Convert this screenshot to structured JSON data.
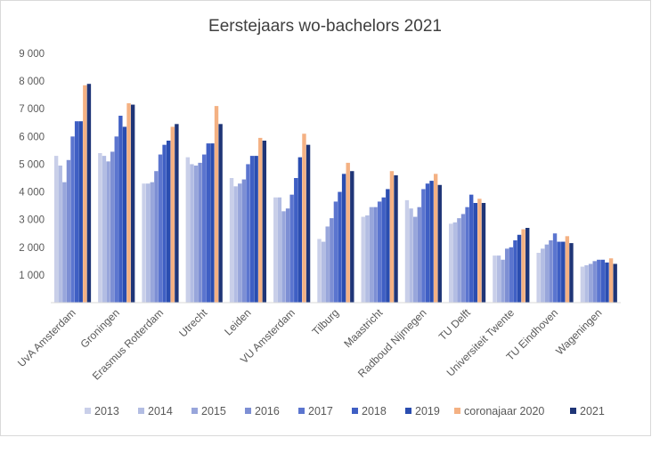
{
  "chart_data": {
    "type": "bar",
    "title": "Eerstejaars wo-bachelors 2021",
    "xlabel": "",
    "ylabel": "",
    "ylim": [
      0,
      9000
    ],
    "yticks": [
      "1 000",
      "2 000",
      "3 000",
      "4 000",
      "5 000",
      "6 000",
      "7 000",
      "8 000",
      "9 000"
    ],
    "grid": false,
    "legend": "bottom",
    "categories": [
      "UvA Amsterdam",
      "Groningen",
      "Erasmus Rotterdam",
      "Utrecht",
      "Leiden",
      "VU Amsterdam",
      "Tilburg",
      "Maastricht",
      "Radboud Nijmegen",
      "TU Delft",
      "Universiteit Twente",
      "TU Eindhoven",
      "Wageningen"
    ],
    "series": [
      {
        "name": "2013",
        "color": "#c9cfe9",
        "values": [
          5300,
          5400,
          4300,
          5250,
          4500,
          3800,
          2300,
          3100,
          3700,
          2850,
          1700,
          1800,
          1300
        ]
      },
      {
        "name": "2014",
        "color": "#b3bde3",
        "values": [
          4950,
          5300,
          4300,
          5000,
          4200,
          3800,
          2200,
          3150,
          3400,
          2900,
          1700,
          1950,
          1350
        ]
      },
      {
        "name": "2015",
        "color": "#98a6db",
        "values": [
          4350,
          5100,
          4350,
          4950,
          4300,
          3300,
          2750,
          3450,
          3100,
          3050,
          1550,
          2100,
          1400
        ]
      },
      {
        "name": "2016",
        "color": "#7d8fd4",
        "values": [
          5150,
          5450,
          4750,
          5050,
          4450,
          3400,
          3050,
          3450,
          3450,
          3200,
          1950,
          2250,
          1500
        ]
      },
      {
        "name": "2017",
        "color": "#5b75cf",
        "values": [
          6000,
          6000,
          5350,
          5350,
          5000,
          3900,
          3650,
          3650,
          4100,
          3450,
          2000,
          2500,
          1550
        ]
      },
      {
        "name": "2018",
        "color": "#3f5fc4",
        "values": [
          6550,
          6750,
          5700,
          5750,
          5300,
          4500,
          4000,
          3800,
          4300,
          3900,
          2250,
          2200,
          1550
        ]
      },
      {
        "name": "2019",
        "color": "#2a4db0",
        "values": [
          6550,
          6350,
          5850,
          5750,
          5300,
          5250,
          4650,
          4100,
          4400,
          3600,
          2450,
          2200,
          1450
        ]
      },
      {
        "name": "coronajaar 2020",
        "color": "#f4b183",
        "values": [
          7850,
          7200,
          6350,
          7100,
          5950,
          6100,
          5050,
          4750,
          4650,
          3750,
          2650,
          2400,
          1600
        ]
      },
      {
        "name": "2021",
        "color": "#1f3577",
        "values": [
          7900,
          7150,
          6450,
          6450,
          5850,
          5700,
          4750,
          4600,
          4250,
          3600,
          2700,
          2150,
          1400
        ]
      }
    ]
  }
}
